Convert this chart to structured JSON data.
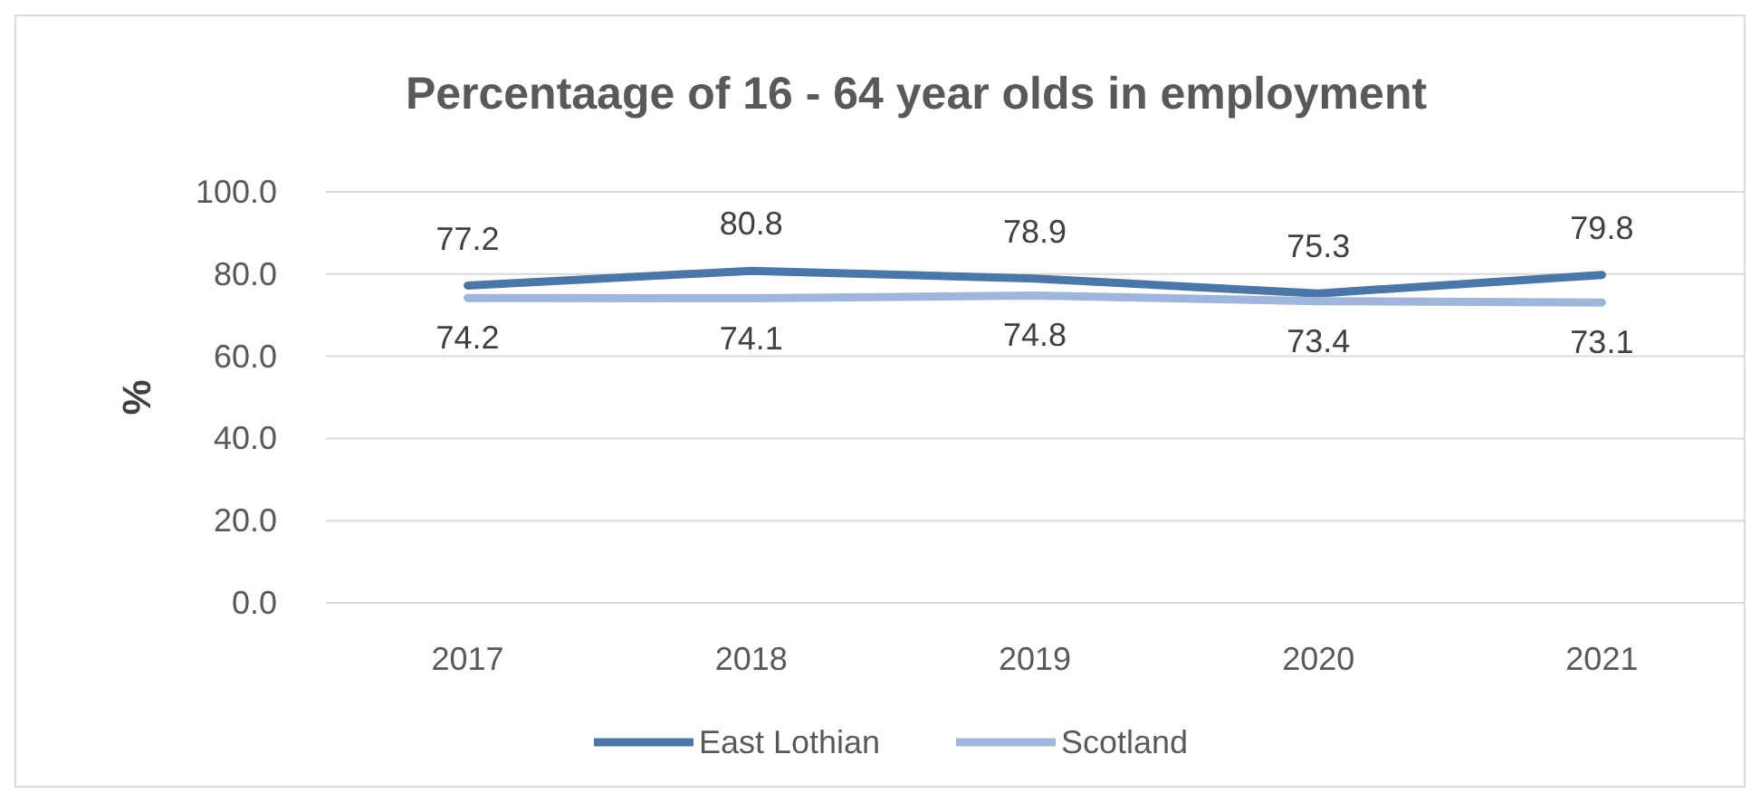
{
  "chart_data": {
    "type": "line",
    "title": "Percentaage of 16 - 64 year olds in employment",
    "ylabel": "%",
    "categories": [
      "2017",
      "2018",
      "2019",
      "2020",
      "2021"
    ],
    "series": [
      {
        "name": "East Lothian",
        "color": "#4a76a8",
        "values": [
          77.2,
          80.8,
          78.9,
          75.3,
          79.8
        ]
      },
      {
        "name": "Scotland",
        "color": "#9fb5db",
        "values": [
          74.2,
          74.1,
          74.8,
          73.4,
          73.1
        ]
      }
    ],
    "ylim": [
      0,
      100
    ],
    "yticks": [
      {
        "value": 0,
        "label": "0.0"
      },
      {
        "value": 20,
        "label": "20.0"
      },
      {
        "value": 40,
        "label": "40.0"
      },
      {
        "value": 60,
        "label": "60.0"
      },
      {
        "value": 80,
        "label": "80.0"
      },
      {
        "value": 100,
        "label": "100.0"
      }
    ],
    "grid": "y",
    "data_labels": true,
    "legend": "bottom",
    "marker": "none",
    "line_style": "solid"
  }
}
